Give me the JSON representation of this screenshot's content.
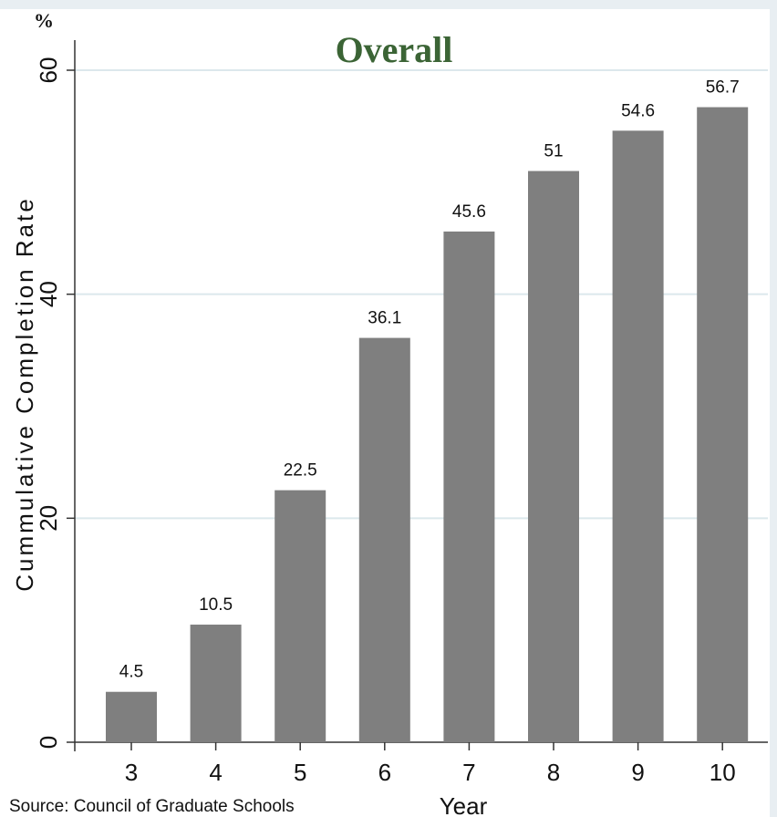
{
  "chart_data": {
    "type": "bar",
    "title": "Overall",
    "unit_label": "%",
    "ylabel": "Cummulative Completion Rate",
    "xlabel": "Year",
    "categories": [
      "3",
      "4",
      "5",
      "6",
      "7",
      "8",
      "9",
      "10"
    ],
    "values": [
      4.5,
      10.5,
      22.5,
      36.1,
      45.6,
      51,
      54.6,
      56.7
    ],
    "data_labels": [
      "4.5",
      "10.5",
      "22.5",
      "36.1",
      "45.6",
      "51",
      "54.6",
      "56.7"
    ],
    "y_ticks": [
      0,
      20,
      40,
      60
    ],
    "y_tick_labels": [
      "0",
      "20",
      "40",
      "60"
    ],
    "ylim": [
      0,
      60
    ],
    "grid": true,
    "source": "Source: Council of Graduate Schools",
    "colors": {
      "bar": "#7f7f7f",
      "title": "#3b6435",
      "grid": "#dce8ec",
      "background_band": "#e8eef2"
    }
  }
}
